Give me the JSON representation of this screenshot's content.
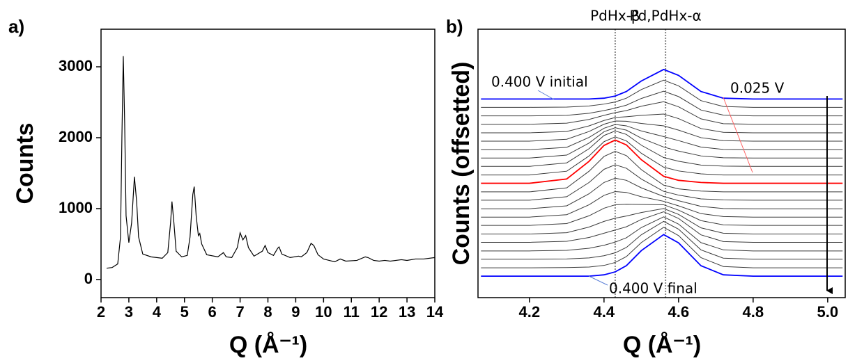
{
  "chart_data": [
    {
      "type": "line",
      "panel": "a)",
      "y_label": "Counts",
      "x_label": "Q (Å⁻¹)",
      "color": "#000000",
      "xlim": [
        2,
        14
      ],
      "ylim": [
        -255,
        3530
      ],
      "xticks": [
        2,
        3,
        4,
        5,
        6,
        7,
        8,
        9,
        10,
        11,
        12,
        13,
        14
      ],
      "yticks": [
        0,
        1000,
        2000,
        3000
      ],
      "x": [
        2.2,
        2.4,
        2.6,
        2.7,
        2.75,
        2.8,
        2.85,
        2.9,
        3.0,
        3.1,
        3.2,
        3.28,
        3.35,
        3.5,
        3.8,
        4.2,
        4.4,
        4.5,
        4.55,
        4.62,
        4.7,
        4.9,
        5.1,
        5.2,
        5.3,
        5.35,
        5.42,
        5.5,
        5.55,
        5.62,
        5.8,
        6.2,
        6.4,
        6.5,
        6.7,
        6.9,
        7.0,
        7.1,
        7.2,
        7.3,
        7.5,
        7.8,
        7.9,
        8.0,
        8.2,
        8.35,
        8.4,
        8.5,
        8.8,
        9.1,
        9.2,
        9.4,
        9.55,
        9.65,
        9.8,
        10.0,
        10.2,
        10.4,
        10.6,
        10.8,
        11.2,
        11.5,
        11.6,
        11.8,
        12.0,
        12.2,
        12.4,
        12.8,
        13.0,
        13.3,
        13.6,
        14.0
      ],
      "values": [
        160,
        170,
        220,
        600,
        2000,
        3150,
        2200,
        900,
        520,
        800,
        1450,
        1100,
        600,
        360,
        320,
        300,
        380,
        800,
        1100,
        800,
        400,
        320,
        340,
        600,
        1200,
        1310,
        900,
        620,
        650,
        500,
        350,
        320,
        380,
        320,
        310,
        450,
        660,
        560,
        620,
        450,
        330,
        400,
        480,
        380,
        340,
        440,
        460,
        360,
        310,
        330,
        320,
        380,
        510,
        480,
        350,
        290,
        270,
        250,
        290,
        260,
        270,
        320,
        310,
        270,
        260,
        270,
        260,
        280,
        270,
        290,
        290,
        310
      ]
    },
    {
      "type": "line",
      "panel": "b)",
      "y_label": "Counts (offsetted)",
      "x_label": "Q (Å⁻¹)",
      "xlim": [
        4.062,
        5.047
      ],
      "ylim": [
        0,
        100
      ],
      "xticks": [
        4.2,
        4.4,
        4.6,
        4.8,
        {
          "value": 5,
          "label": "5.0"
        }
      ],
      "annotations": [
        {
          "text": "PdHx-β",
          "x": 4.43
        },
        {
          "text": "Pd,PdHx-α",
          "x": 4.565
        }
      ],
      "x": [
        4.07,
        4.2,
        4.3,
        4.36,
        4.4,
        4.43,
        4.46,
        4.5,
        4.56,
        4.6,
        4.66,
        4.72,
        4.8,
        4.92,
        5.04
      ],
      "series": [
        {
          "name": "0.400 V initial",
          "color": "#0000ff",
          "values": [
            74,
            74,
            74,
            74,
            74.3,
            75.1,
            76.8,
            80.7,
            85,
            82.8,
            76.8,
            74.3,
            74,
            74,
            74
          ]
        },
        {
          "color": "#3a3a3a",
          "values": [
            70.9,
            70.9,
            71.0,
            71.4,
            72.1,
            72.9,
            74.3,
            77.5,
            81.0,
            78.9,
            73.4,
            71.2,
            70.9,
            70.9,
            70.9
          ]
        },
        {
          "color": "#3a3a3a",
          "values": [
            67.7,
            67.7,
            67.9,
            68.7,
            69.7,
            70.6,
            71.7,
            74.2,
            76.9,
            74.9,
            69.9,
            68.0,
            67.7,
            67.7,
            67.7
          ]
        },
        {
          "color": "#3a3a3a",
          "values": [
            64.6,
            64.6,
            65.0,
            66.4,
            67.9,
            68.9,
            69.7,
            71.3,
            73.0,
            71.1,
            66.6,
            64.8,
            64.6,
            64.6,
            64.6
          ]
        },
        {
          "color": "#3a3a3a",
          "values": [
            61.4,
            61.4,
            61.9,
            64.0,
            66.0,
            67.1,
            67.4,
            67.9,
            68.4,
            66.7,
            63.0,
            61.6,
            61.4,
            61.4,
            61.4
          ]
        },
        {
          "color": "#3a3a3a",
          "values": [
            58.3,
            58.3,
            59.0,
            61.9,
            64.6,
            65.8,
            65.7,
            64.9,
            64.0,
            62.4,
            59.6,
            58.5,
            58.3,
            58.3,
            58.3
          ]
        },
        {
          "color": "#3a3a3a",
          "values": [
            55.1,
            55.1,
            56.0,
            59.7,
            63.1,
            64.5,
            64.0,
            62.1,
            60.0,
            58.5,
            56.1,
            55.2,
            55.1,
            55.1,
            55.1
          ]
        },
        {
          "color": "#3a3a3a",
          "values": [
            52,
            52,
            53.1,
            57.6,
            61.8,
            63.3,
            62.4,
            59.4,
            56.1,
            54.6,
            52.8,
            52.1,
            52,
            52,
            52
          ]
        },
        {
          "color": "#3a3a3a",
          "values": [
            48.9,
            48.9,
            50.2,
            55.5,
            60.4,
            62.1,
            60.8,
            56.8,
            52.2,
            50.8,
            49.4,
            49.0,
            48.9,
            48.9,
            48.9
          ]
        },
        {
          "color": "#3a3a3a",
          "values": [
            45.7,
            45.7,
            47.1,
            52.8,
            58.1,
            59.9,
            58.4,
            53.8,
            48.6,
            47.2,
            46.1,
            45.7,
            45.7,
            45.7,
            45.7
          ]
        },
        {
          "name": "0.025 V",
          "color": "#ff0000",
          "values": [
            42.6,
            42.6,
            44.2,
            50.8,
            56.7,
            58.7,
            56.9,
            51.4,
            45.2,
            43.7,
            42.9,
            42.6,
            42.6,
            42.6,
            42.6
          ]
        },
        {
          "color": "#3a3a3a",
          "values": [
            39.4,
            39.4,
            40.9,
            47.1,
            52.6,
            54.5,
            52.9,
            47.7,
            41.9,
            40.5,
            39.7,
            39.4,
            39.4,
            39.4,
            39.4
          ]
        },
        {
          "color": "#3a3a3a",
          "values": [
            36.3,
            36.3,
            37.6,
            42.9,
            47.8,
            49.5,
            48.2,
            44.2,
            39.6,
            38.2,
            36.8,
            36.4,
            36.3,
            36.3,
            36.3
          ]
        },
        {
          "color": "#3a3a3a",
          "values": [
            33.1,
            33.1,
            34.2,
            38.7,
            42.9,
            44.5,
            43.7,
            40.9,
            37.7,
            36.1,
            34.0,
            33.2,
            33.1,
            33.1,
            33.1
          ]
        },
        {
          "color": "#3a3a3a",
          "values": [
            30,
            30,
            30.9,
            34.6,
            38.1,
            39.5,
            39.2,
            37.6,
            35.9,
            34.2,
            31.3,
            30.2,
            30,
            30,
            30
          ]
        },
        {
          "color": "#3a3a3a",
          "values": [
            26.9,
            26.9,
            27.6,
            30.5,
            33.3,
            34.6,
            34.8,
            34.7,
            34.6,
            32.6,
            28.7,
            27.1,
            26.9,
            26.9,
            26.9
          ]
        },
        {
          "color": "#3a3a3a",
          "values": [
            23.7,
            23.7,
            24.2,
            26.3,
            28.4,
            29.6,
            30.4,
            31.7,
            33.2,
            31.0,
            26.0,
            24.0,
            23.7,
            23.7,
            23.7
          ]
        },
        {
          "color": "#3a3a3a",
          "values": [
            20.6,
            20.6,
            21.0,
            22.4,
            24.0,
            25.2,
            26.4,
            29.1,
            32.0,
            29.5,
            23.4,
            20.9,
            20.6,
            20.6,
            20.6
          ]
        },
        {
          "color": "#3a3a3a",
          "values": [
            17.4,
            17.4,
            17.6,
            18.4,
            19.5,
            20.7,
            22.3,
            26.1,
            30.1,
            27.4,
            20.5,
            17.8,
            17.4,
            17.4,
            17.4
          ]
        },
        {
          "color": "#3a3a3a",
          "values": [
            14.3,
            14.3,
            14.4,
            14.8,
            15.6,
            16.7,
            18.7,
            23.4,
            28.4,
            25.5,
            17.8,
            14.7,
            14.3,
            14.3,
            14.3
          ]
        },
        {
          "color": "#3a3a3a",
          "values": [
            11.1,
            11.1,
            11.2,
            11.4,
            12.0,
            13.1,
            15.3,
            20.5,
            26.2,
            23.1,
            14.9,
            11.6,
            11.1,
            11.1,
            11.1
          ]
        },
        {
          "name": "0.400 V final",
          "color": "#0000ff",
          "values": [
            8,
            8,
            8,
            8,
            8.5,
            9.6,
            11.9,
            17.5,
            23.5,
            20.4,
            11.9,
            8.5,
            8,
            8,
            8
          ]
        }
      ]
    }
  ]
}
